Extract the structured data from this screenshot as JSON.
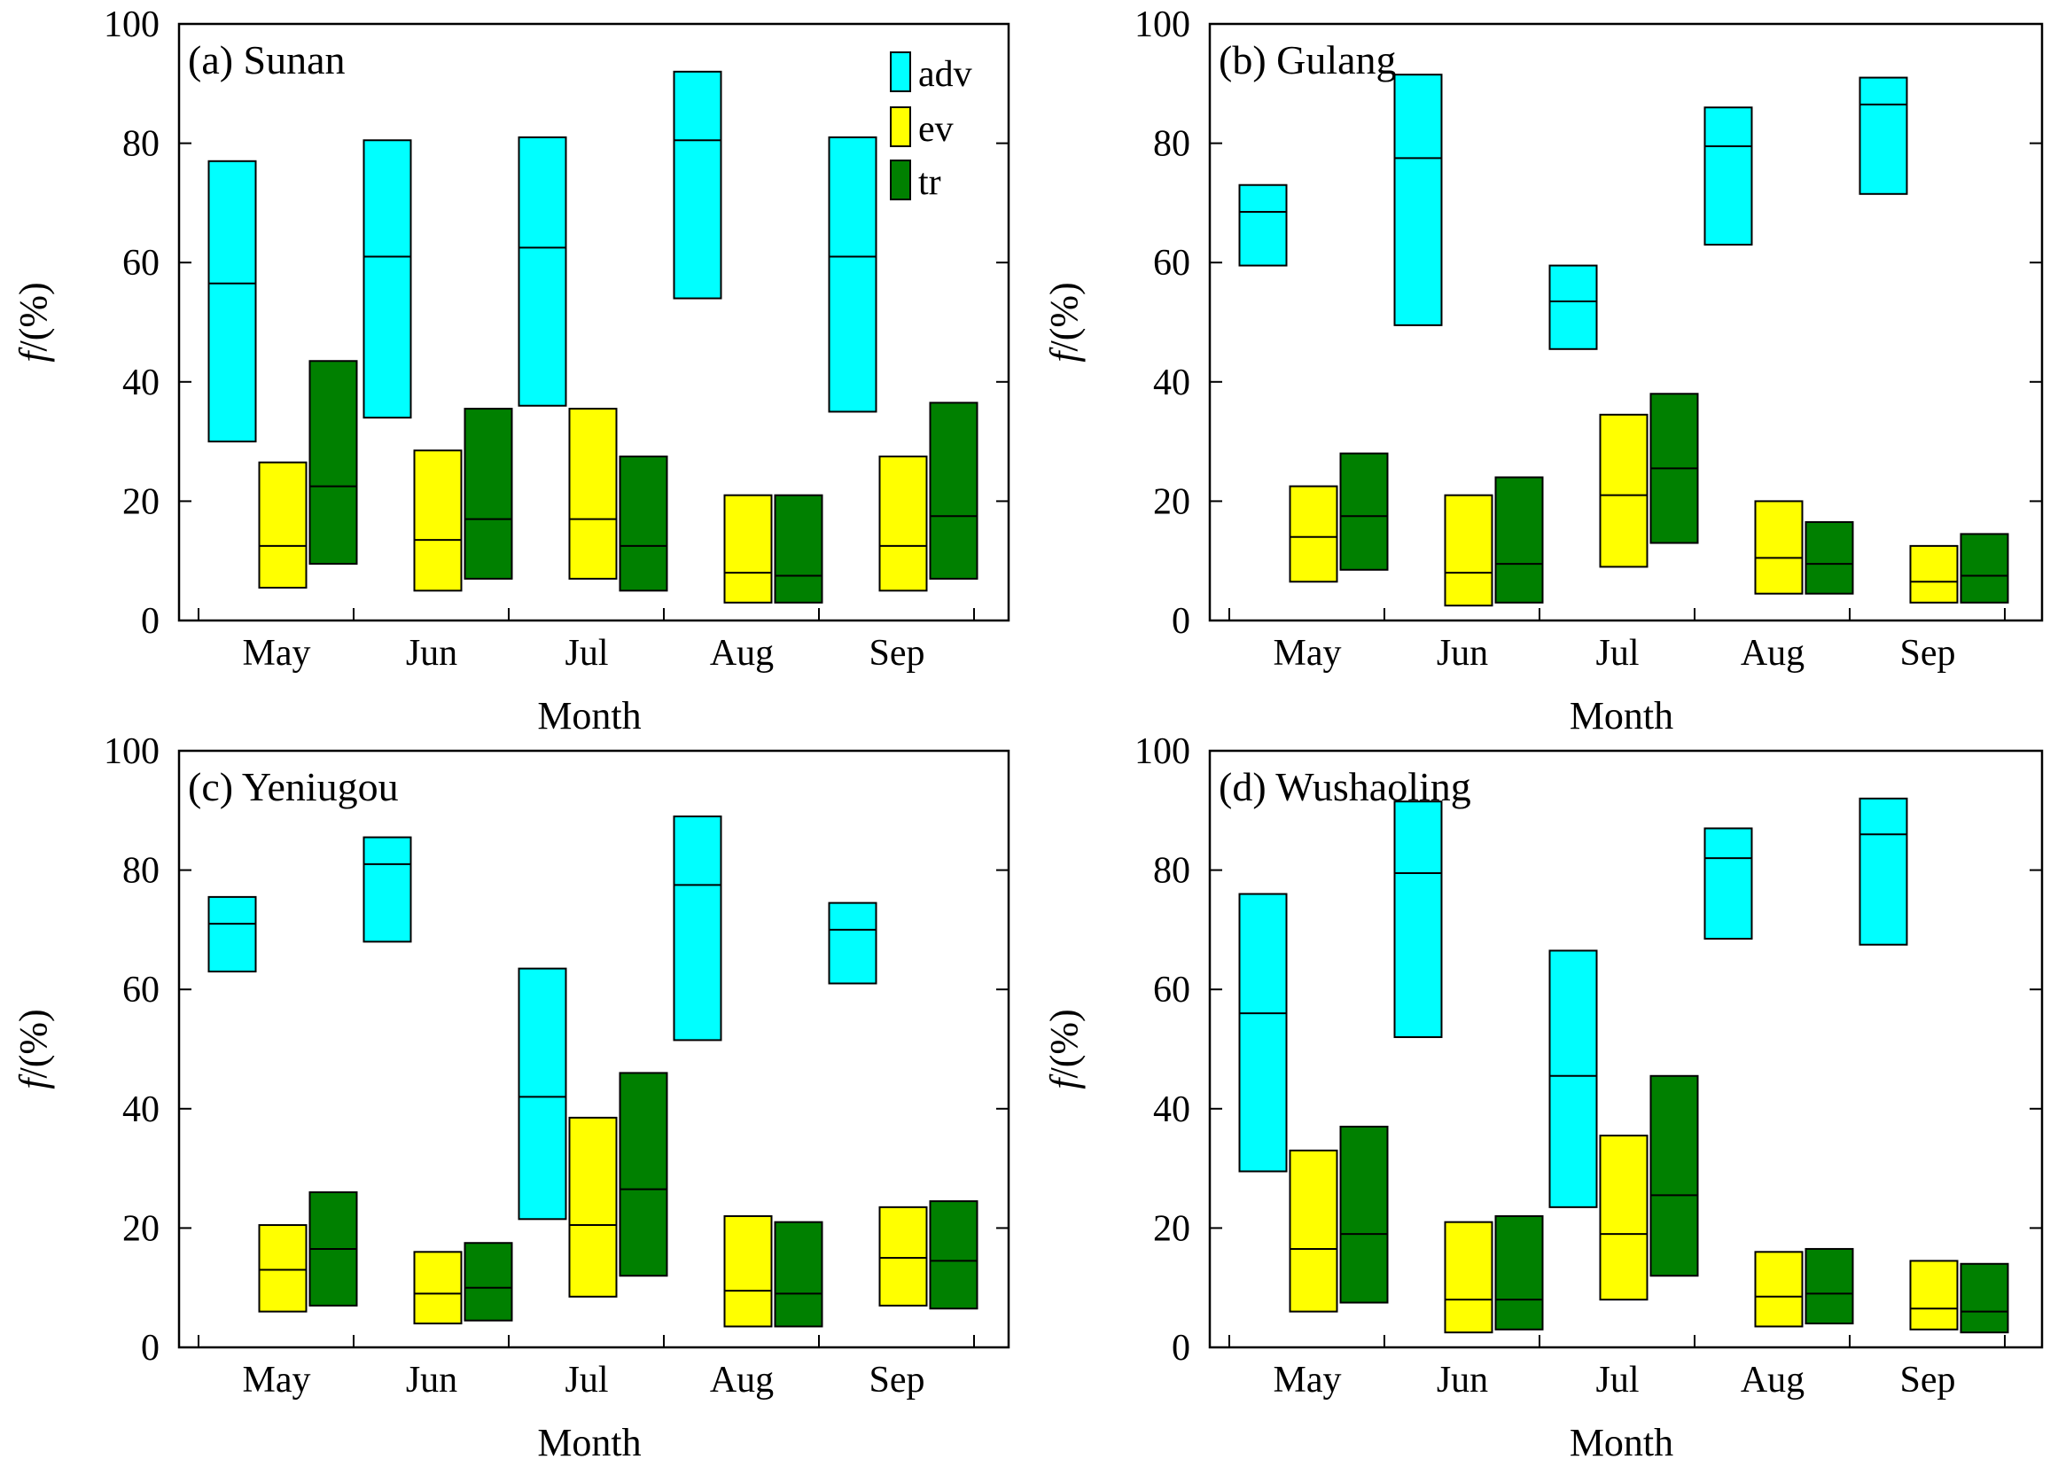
{
  "chart_data": [
    {
      "type": "bar",
      "subtype": "floating-range-with-median",
      "title": "(a) Sunan",
      "xlabel": "Month",
      "ylabel_var": "f",
      "ylabel_unit": "/(%)",
      "ylim": [
        0,
        100
      ],
      "yticks": [
        "0",
        "20",
        "40",
        "60",
        "80",
        "100"
      ],
      "categories": [
        "May",
        "Jun",
        "Jul",
        "Aug",
        "Sep"
      ],
      "series": [
        {
          "name": "adv",
          "color": "#00FFFF",
          "low": [
            30,
            34,
            36,
            54,
            35
          ],
          "median": [
            56.5,
            61,
            62.5,
            80.5,
            61
          ],
          "high": [
            77,
            80.5,
            81,
            92,
            81
          ]
        },
        {
          "name": "ev",
          "color": "#FFFF00",
          "low": [
            5.5,
            5,
            7,
            3,
            5
          ],
          "median": [
            12.5,
            13.5,
            17,
            8,
            12.5
          ],
          "high": [
            26.5,
            28.5,
            35.5,
            21,
            27.5
          ]
        },
        {
          "name": "tr",
          "color": "#008000",
          "low": [
            9.5,
            7,
            5,
            3,
            7
          ],
          "median": [
            22.5,
            17,
            12.5,
            7.5,
            17.5
          ],
          "high": [
            43.5,
            35.5,
            27.5,
            21,
            36.5
          ]
        }
      ],
      "legend": [
        "adv",
        "ev",
        "tr"
      ]
    },
    {
      "type": "bar",
      "subtype": "floating-range-with-median",
      "title": "(b) Gulang",
      "xlabel": "Month",
      "ylabel_var": "f",
      "ylabel_unit": "/(%)",
      "ylim": [
        0,
        100
      ],
      "yticks": [
        "0",
        "20",
        "40",
        "60",
        "80",
        "100"
      ],
      "categories": [
        "May",
        "Jun",
        "Jul",
        "Aug",
        "Sep"
      ],
      "series": [
        {
          "name": "adv",
          "color": "#00FFFF",
          "low": [
            59.5,
            49.5,
            45.5,
            63,
            71.5
          ],
          "median": [
            68.5,
            77.5,
            53.5,
            79.5,
            86.5
          ],
          "high": [
            73,
            91.5,
            59.5,
            86,
            91
          ]
        },
        {
          "name": "ev",
          "color": "#FFFF00",
          "low": [
            6.5,
            2.5,
            9,
            4.5,
            3
          ],
          "median": [
            14,
            8,
            21,
            10.5,
            6.5
          ],
          "high": [
            22.5,
            21,
            34.5,
            20,
            12.5
          ]
        },
        {
          "name": "tr",
          "color": "#008000",
          "low": [
            8.5,
            3,
            13,
            4.5,
            3
          ],
          "median": [
            17.5,
            9.5,
            25.5,
            9.5,
            7.5
          ],
          "high": [
            28,
            24,
            38,
            16.5,
            14.5
          ]
        }
      ]
    },
    {
      "type": "bar",
      "subtype": "floating-range-with-median",
      "title": "(c) Yeniugou",
      "xlabel": "Month",
      "ylabel_var": "f",
      "ylabel_unit": "/(%)",
      "ylim": [
        0,
        100
      ],
      "yticks": [
        "0",
        "20",
        "40",
        "60",
        "80",
        "100"
      ],
      "categories": [
        "May",
        "Jun",
        "Jul",
        "Aug",
        "Sep"
      ],
      "series": [
        {
          "name": "adv",
          "color": "#00FFFF",
          "low": [
            63,
            68,
            21.5,
            51.5,
            61
          ],
          "median": [
            71,
            81,
            42,
            77.5,
            70
          ],
          "high": [
            75.5,
            85.5,
            63.5,
            89,
            74.5
          ]
        },
        {
          "name": "ev",
          "color": "#FFFF00",
          "low": [
            6,
            4,
            8.5,
            3.5,
            7
          ],
          "median": [
            13,
            9,
            20.5,
            9.5,
            15
          ],
          "high": [
            20.5,
            16,
            38.5,
            22,
            23.5
          ]
        },
        {
          "name": "tr",
          "color": "#008000",
          "low": [
            7,
            4.5,
            12,
            3.5,
            6.5
          ],
          "median": [
            16.5,
            10,
            26.5,
            9,
            14.5
          ],
          "high": [
            26,
            17.5,
            46,
            21,
            24.5
          ]
        }
      ]
    },
    {
      "type": "bar",
      "subtype": "floating-range-with-median",
      "title": "(d) Wushaoling",
      "xlabel": "Month",
      "ylabel_var": "f",
      "ylabel_unit": "/(%)",
      "ylim": [
        0,
        100
      ],
      "yticks": [
        "0",
        "20",
        "40",
        "60",
        "80",
        "100"
      ],
      "categories": [
        "May",
        "Jun",
        "Jul",
        "Aug",
        "Sep"
      ],
      "series": [
        {
          "name": "adv",
          "color": "#00FFFF",
          "low": [
            29.5,
            52,
            23.5,
            68.5,
            67.5
          ],
          "median": [
            56,
            79.5,
            45.5,
            82,
            86
          ],
          "high": [
            76,
            91.5,
            66.5,
            87,
            92
          ]
        },
        {
          "name": "ev",
          "color": "#FFFF00",
          "low": [
            6,
            2.5,
            8,
            3.5,
            3
          ],
          "median": [
            16.5,
            8,
            19,
            8.5,
            6.5
          ],
          "high": [
            33,
            21,
            35.5,
            16,
            14.5
          ]
        },
        {
          "name": "tr",
          "color": "#008000",
          "low": [
            7.5,
            3,
            12,
            4,
            2.5
          ],
          "median": [
            19,
            8,
            25.5,
            9,
            6
          ],
          "high": [
            37,
            22,
            45.5,
            16.5,
            14
          ]
        }
      ]
    }
  ]
}
